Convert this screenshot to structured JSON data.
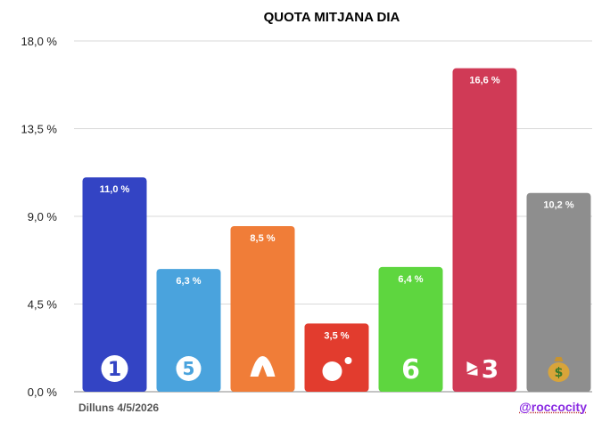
{
  "chart_data": {
    "type": "bar",
    "title": "QUOTA MITJANA DIA",
    "xlabel": "",
    "ylabel": "",
    "ylim": [
      0,
      18
    ],
    "yticks": [
      "0,0 %",
      "4,5 %",
      "9,0 %",
      "13,5 %",
      "18,0 %"
    ],
    "ytick_values": [
      0,
      4.5,
      9,
      13.5,
      18
    ],
    "grid": true,
    "categories": [
      "La 1",
      "Telecinco",
      "Antena 3",
      "Cuatro",
      "laSexta",
      "TV3",
      "Altres"
    ],
    "values": [
      11.0,
      6.3,
      8.5,
      3.5,
      6.4,
      16.6,
      10.2
    ],
    "value_labels": [
      "11,0 %",
      "6,3 %",
      "8,5 %",
      "3,5 %",
      "6,4 %",
      "16,6 %",
      "10,2 %"
    ],
    "colors": [
      "#3344c4",
      "#4aa3dd",
      "#f07d38",
      "#e23c2e",
      "#5ed63f",
      "#d03a56",
      "#8e8e8e"
    ],
    "icons": [
      "la1-logo-icon",
      "telecinco-logo-icon",
      "antena3-logo-icon",
      "cuatro-logo-icon",
      "lasexta-logo-icon",
      "tv3-logo-icon",
      "money-bag-icon"
    ]
  },
  "footer": {
    "date": "Dilluns 4/5/2026",
    "handle": "@roccocity"
  }
}
